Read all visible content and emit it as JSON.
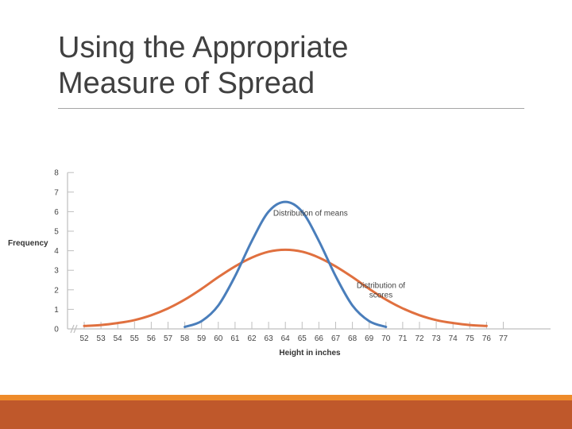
{
  "slide": {
    "title_line1": "Using the Appropriate",
    "title_line2": "Measure of Spread"
  },
  "colors": {
    "means_line": "#4a7ebb",
    "scores_line": "#e0703f",
    "axis": "#bfbfbf",
    "band_orange": "#ee8b2a",
    "band_rust": "#bf582b"
  },
  "chart_data": {
    "type": "line",
    "xlabel": "Height in inches",
    "ylabel": "Frequency",
    "xlim": [
      52,
      77
    ],
    "ylim": [
      0,
      8
    ],
    "x_ticks": [
      52,
      53,
      54,
      55,
      56,
      57,
      58,
      59,
      60,
      61,
      62,
      63,
      64,
      65,
      66,
      67,
      68,
      69,
      70,
      71,
      72,
      73,
      74,
      75,
      76,
      77
    ],
    "y_ticks": [
      0,
      1,
      2,
      3,
      4,
      5,
      6,
      7,
      8
    ],
    "axis_break": true,
    "series": [
      {
        "key": "means",
        "x": [
          58,
          59,
          60,
          61,
          62,
          63,
          64,
          65,
          66,
          67,
          68,
          69,
          70
        ],
        "y": [
          0.1,
          0.4,
          1.2,
          2.7,
          4.5,
          6.0,
          6.5,
          6.0,
          4.5,
          2.7,
          1.2,
          0.4,
          0.1
        ]
      },
      {
        "key": "scores",
        "x": [
          52,
          53,
          54,
          55,
          56,
          57,
          58,
          59,
          60,
          61,
          62,
          63,
          64,
          65,
          66,
          67,
          68,
          69,
          70,
          71,
          72,
          73,
          74,
          75,
          76
        ],
        "y": [
          0.15,
          0.2,
          0.3,
          0.45,
          0.7,
          1.05,
          1.5,
          2.05,
          2.65,
          3.2,
          3.65,
          3.95,
          4.05,
          3.95,
          3.65,
          3.2,
          2.65,
          2.05,
          1.5,
          1.05,
          0.7,
          0.45,
          0.3,
          0.2,
          0.15
        ]
      }
    ],
    "annotations": [
      {
        "key": "means",
        "lines": [
          "Distribution of means"
        ],
        "x": 65.5,
        "y": 5.8
      },
      {
        "key": "scores",
        "lines": [
          "Distribution of",
          "scores"
        ],
        "x": 69.7,
        "y": 2.1
      }
    ]
  }
}
